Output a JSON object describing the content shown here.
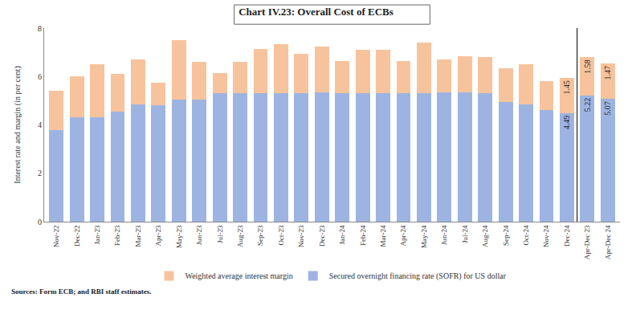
{
  "chart_data": {
    "type": "bar",
    "title": "Chart IV.23: Overall Cost of ECBs",
    "y_label": "Interest rate and margin (in per cent)",
    "source": "Sources: Form ECB; and RBI staff estimates.",
    "stacked": true,
    "data_labels": true,
    "legend": "bottom",
    "grid": false,
    "ylim": [
      0,
      8
    ],
    "yticks": [
      0,
      2,
      4,
      6,
      8
    ],
    "categories": [
      "Nov-22",
      "Dec-22",
      "Jan-23",
      "Feb-23",
      "Mar-23",
      "Apr-23",
      "May-23",
      "Jun-23",
      "Jul-23",
      "Aug-23",
      "Sep-23",
      "Oct-23",
      "Nov-23",
      "Dec-23",
      "Jan-24",
      "Feb-24",
      "Mar-24",
      "Apr-24",
      "May-24",
      "Jun-24",
      "Jul-24",
      "Aug-24",
      "Sep-24",
      "Oct-24",
      "Nov-24",
      "Dec-24",
      "Apr-Dec 23",
      "Apr-Dec 24"
    ],
    "series": [
      {
        "name": "Secured overnight financing rate (SOFR) for US dollar",
        "color": "#9db4e2",
        "values": [
          3.8,
          4.3,
          4.3,
          4.55,
          4.85,
          4.8,
          5.05,
          5.05,
          5.3,
          5.3,
          5.3,
          5.32,
          5.32,
          5.35,
          5.32,
          5.31,
          5.32,
          5.32,
          5.32,
          5.33,
          5.34,
          5.3,
          4.95,
          4.85,
          4.6,
          4.49,
          5.22,
          5.07
        ],
        "value_labels": [
          null,
          null,
          null,
          null,
          null,
          null,
          null,
          null,
          null,
          null,
          null,
          null,
          null,
          null,
          null,
          null,
          null,
          null,
          null,
          null,
          null,
          null,
          null,
          null,
          null,
          "4.49",
          "5.22",
          "5.07"
        ]
      },
      {
        "name": "Weighted average interest margin",
        "color": "#f7c39c",
        "values": [
          1.6,
          1.7,
          2.2,
          1.55,
          1.85,
          0.95,
          2.45,
          1.55,
          0.85,
          1.3,
          1.85,
          2.03,
          1.63,
          1.9,
          1.33,
          1.79,
          1.78,
          1.33,
          2.08,
          1.37,
          1.51,
          1.5,
          1.4,
          1.65,
          1.2,
          1.45,
          1.58,
          1.47
        ],
        "value_labels": [
          null,
          null,
          null,
          null,
          null,
          null,
          null,
          null,
          null,
          null,
          null,
          null,
          null,
          null,
          null,
          null,
          null,
          null,
          null,
          null,
          null,
          null,
          null,
          null,
          null,
          "1.45",
          "1.58",
          "1.47"
        ]
      }
    ]
  }
}
